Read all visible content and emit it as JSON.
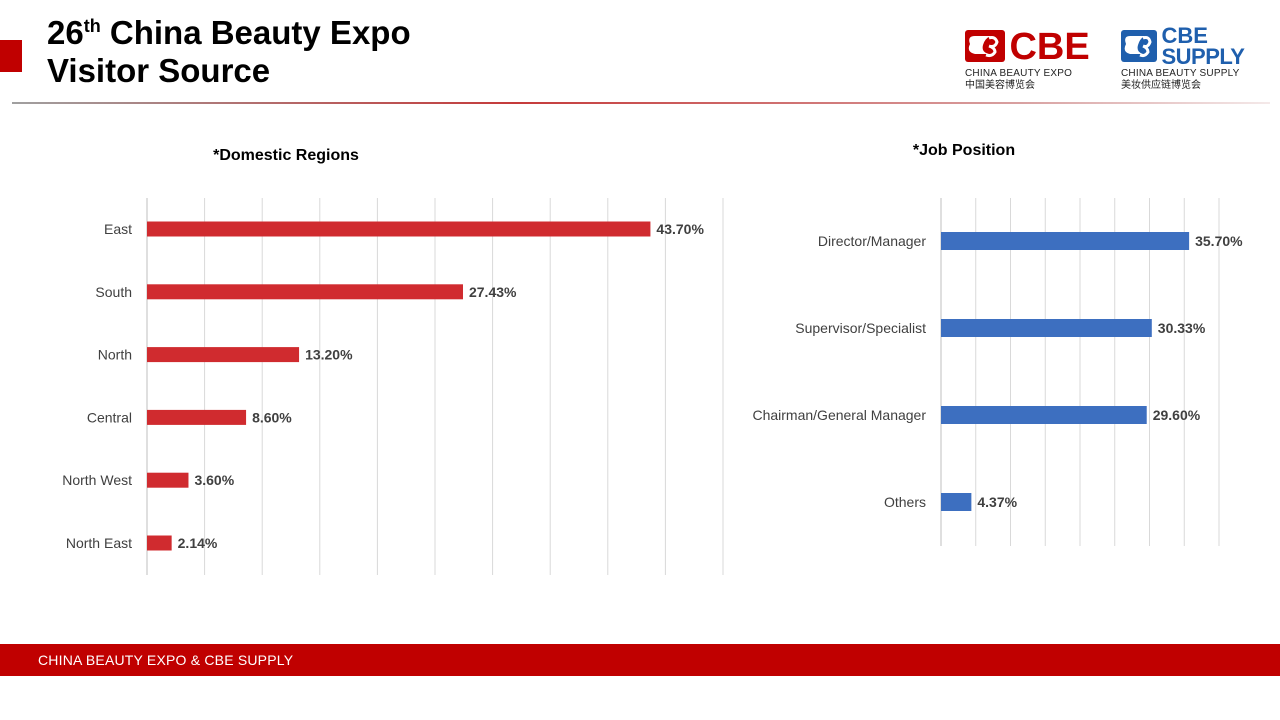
{
  "header": {
    "title_line1_num": "26",
    "title_line1_sup": "th",
    "title_line1_rest": " China Beauty Expo",
    "title_line2": "Visitor Source"
  },
  "logos": {
    "cbe": {
      "word": "CBE",
      "sub": "CHINA BEAUTY EXPO",
      "cn": "中国美容博览会",
      "color": "#c00000"
    },
    "supply": {
      "word_top": "CBE",
      "word_bottom": "SUPPLY",
      "sub": "CHINA BEAUTY SUPPLY",
      "cn": "美妆供应链博览会",
      "color": "#1f5fad"
    }
  },
  "footer": {
    "text": "CHINA BEAUTY EXPO & CBE SUPPLY"
  },
  "colors": {
    "red_bar": "#d02b2f",
    "blue_bar": "#3d6fc0"
  },
  "chart_data": [
    {
      "type": "bar",
      "orientation": "horizontal",
      "title": "*Domestic Regions",
      "categories": [
        "East",
        "South",
        "North",
        "Central",
        "North West",
        "North East"
      ],
      "values": [
        43.7,
        27.43,
        13.2,
        8.6,
        3.6,
        2.14
      ],
      "labels": [
        "43.70%",
        "27.43%",
        "13.20%",
        "8.60%",
        "3.60%",
        "2.14%"
      ],
      "xlim": [
        0,
        50
      ],
      "grid": true
    },
    {
      "type": "bar",
      "orientation": "horizontal",
      "title": "*Job Position",
      "categories": [
        "Director/Manager",
        "Supervisor/Specialist",
        "Chairman/General Manager",
        "Others"
      ],
      "values": [
        35.7,
        30.33,
        29.6,
        4.37
      ],
      "labels": [
        "35.70%",
        "30.33%",
        "29.60%",
        "4.37%"
      ],
      "xlim": [
        0,
        40
      ],
      "grid": true
    }
  ]
}
